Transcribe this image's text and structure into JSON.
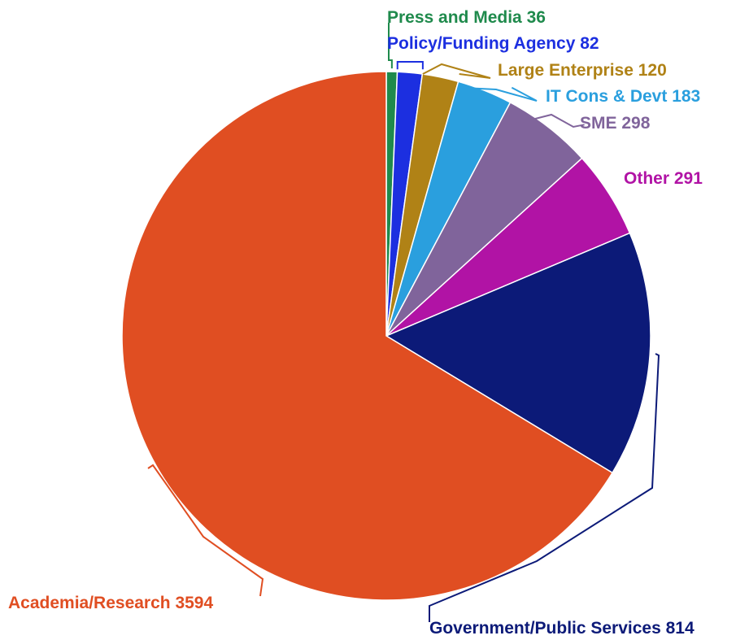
{
  "chart_data": {
    "type": "pie",
    "title": "",
    "slices": [
      {
        "label": "Press and Media",
        "value": 36,
        "color": "#1f8a4c"
      },
      {
        "label": "Policy/Funding Agency",
        "value": 82,
        "color": "#1c2fe0"
      },
      {
        "label": "Large Enterprise",
        "value": 120,
        "color": "#b08216"
      },
      {
        "label": "IT Cons & Devt",
        "value": 183,
        "color": "#2a9fde"
      },
      {
        "label": "SME",
        "value": 298,
        "color": "#80649b"
      },
      {
        "label": "Other",
        "value": 291,
        "color": "#b113a5"
      },
      {
        "label": "Government/Public Services",
        "value": 814,
        "color": "#0c1a78"
      },
      {
        "label": "Academia/Research",
        "value": 3594,
        "color": "#e04e22"
      }
    ]
  }
}
